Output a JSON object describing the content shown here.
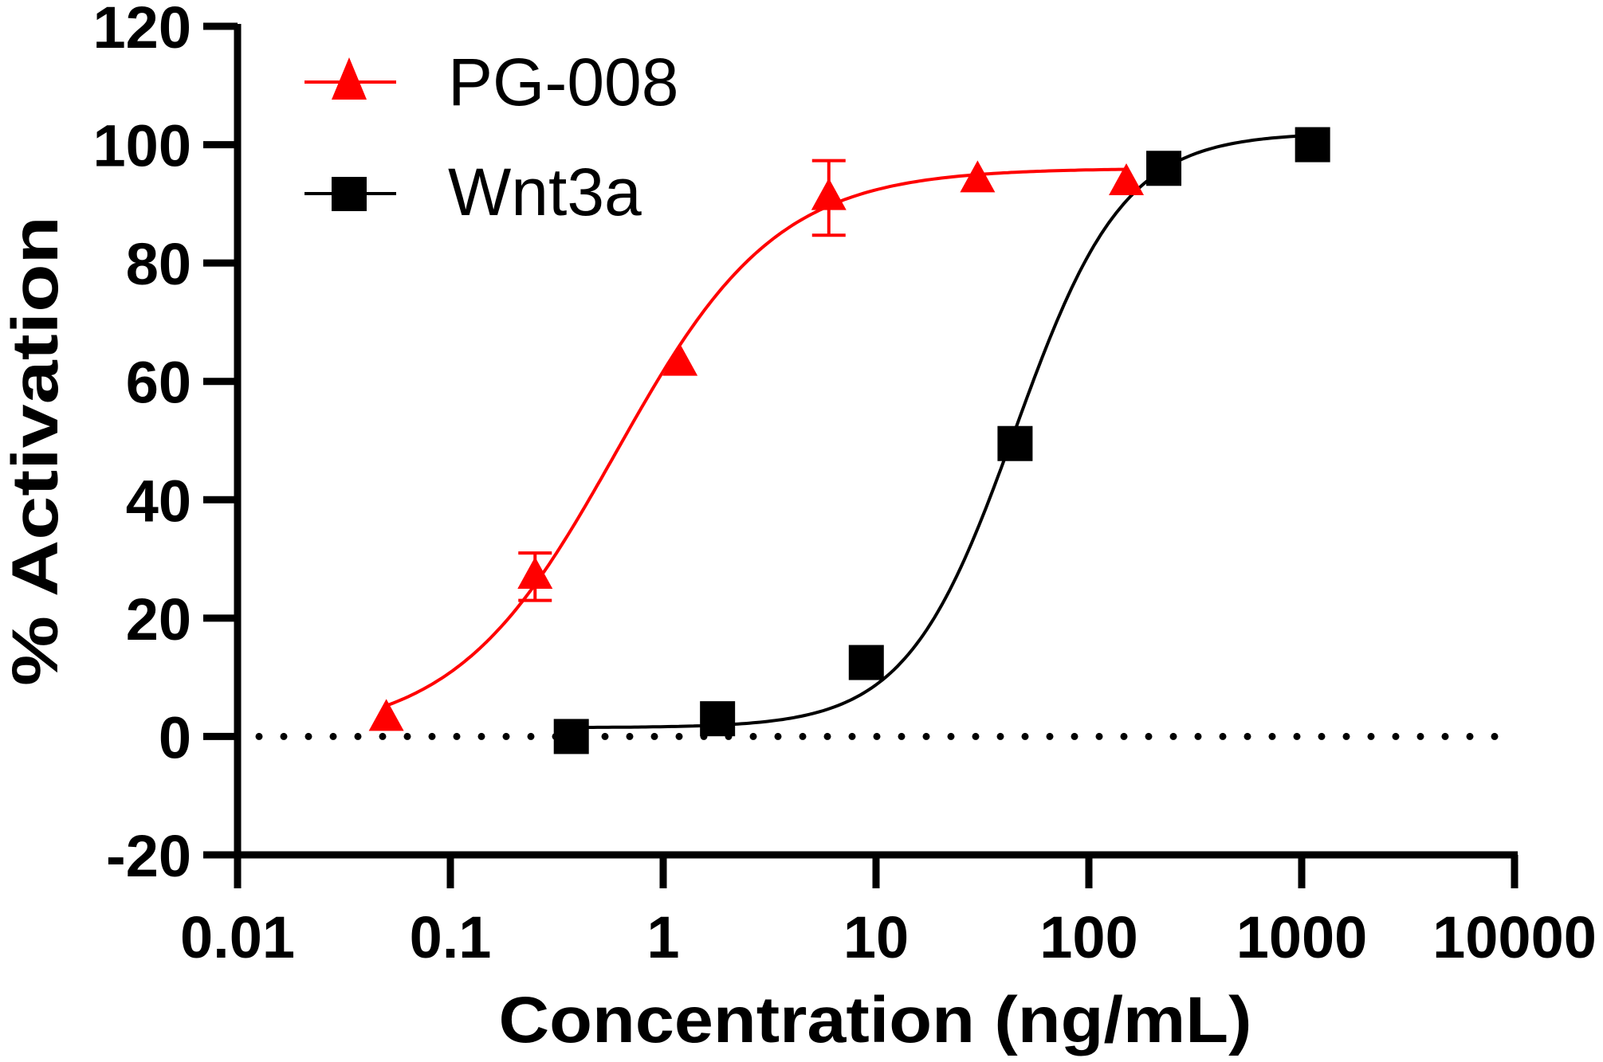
{
  "chart_data": {
    "type": "scatter",
    "title": "",
    "xlabel": "Concentration (ng/mL)",
    "ylabel": "% Activation",
    "xscale": "log",
    "xlim": [
      0.01,
      10000
    ],
    "ylim": [
      -20,
      120
    ],
    "xticks": [
      0.01,
      0.1,
      1,
      10,
      100,
      1000,
      10000
    ],
    "xtick_labels": [
      "0.01",
      "0.1",
      "1",
      "10",
      "100",
      "1000",
      "10000"
    ],
    "yticks": [
      -20,
      0,
      20,
      40,
      60,
      80,
      100,
      120
    ],
    "ytick_labels": [
      "-20",
      "0",
      "20",
      "40",
      "60",
      "80",
      "100",
      "120"
    ],
    "grid": false,
    "reference_line": {
      "y": 0,
      "style": "dotted",
      "color": "#000000"
    },
    "legend": {
      "placement": "top-left"
    },
    "series": [
      {
        "name": "PG-008",
        "color": "#ff0000",
        "marker": "triangle",
        "x": [
          0.05,
          0.25,
          1.2,
          6,
          30,
          150
        ],
        "y": [
          3,
          27,
          63,
          91,
          94,
          93.5
        ],
        "error": [
          null,
          4,
          null,
          6.3,
          null,
          null
        ],
        "fit": {
          "model": "4PL",
          "bottom": 0,
          "top": 96,
          "ec50": 0.6,
          "hill": 1.15,
          "x_range": [
            0.05,
            150
          ]
        }
      },
      {
        "name": "Wnt3a",
        "color": "#000000",
        "marker": "square",
        "x": [
          0.37,
          1.8,
          9,
          45,
          225,
          1125
        ],
        "y": [
          0,
          3,
          12.5,
          49.5,
          96,
          100
        ],
        "error": [
          null,
          null,
          null,
          null,
          null,
          null
        ],
        "fit": {
          "model": "4PL",
          "bottom": 1.5,
          "top": 102,
          "ec50": 45,
          "hill": 1.7,
          "x_range": [
            0.37,
            1125
          ]
        }
      }
    ]
  }
}
